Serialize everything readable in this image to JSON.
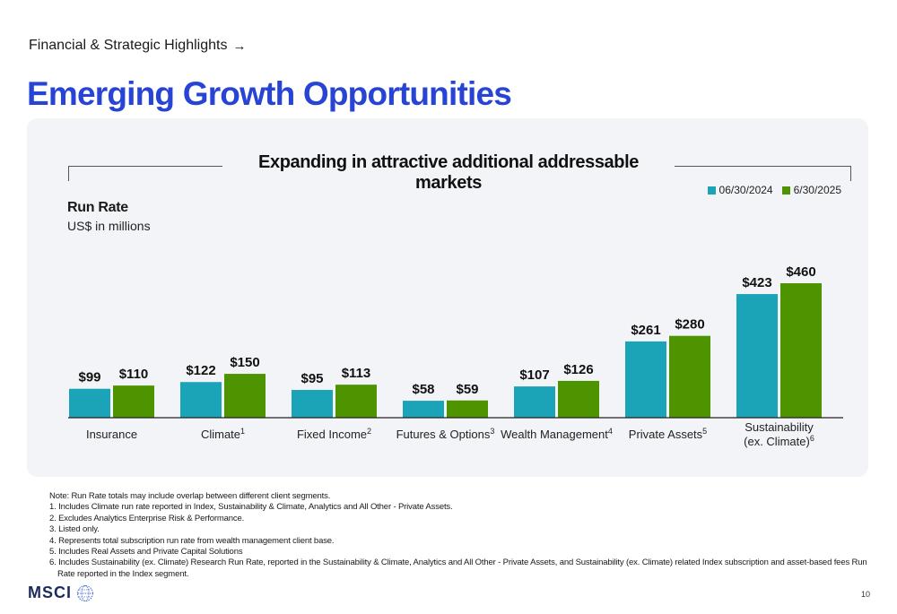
{
  "header": {
    "breadcrumb": "Financial & Strategic Highlights",
    "breadcrumb_arrow": "→",
    "title": "Emerging Growth Opportunities"
  },
  "colors": {
    "title_blue": "#2744d4",
    "teal": "#1ba3b8",
    "green": "#4d9400",
    "panel_bg": "#f3f4f8"
  },
  "chart_data": {
    "type": "bar",
    "title": "Expanding in attractive additional addressable markets",
    "ylabel": "Run Rate",
    "ysublabel": "US$ in millions",
    "legend_position": "top-right",
    "grid": false,
    "ylim": [
      0,
      460
    ],
    "categories": [
      {
        "name": "Insurance",
        "sup": ""
      },
      {
        "name": "Climate",
        "sup": "1"
      },
      {
        "name": "Fixed Income",
        "sup": "2"
      },
      {
        "name": "Futures & Options",
        "sup": "3"
      },
      {
        "name": "Wealth Management",
        "sup": "4"
      },
      {
        "name": "Private Assets",
        "sup": "5"
      },
      {
        "name": "Sustainability (ex. Climate)",
        "sup": "6"
      }
    ],
    "series": [
      {
        "name": "06/30/2024",
        "color": "#1ba3b8",
        "values": [
          99,
          122,
          95,
          58,
          107,
          261,
          423
        ],
        "labels": [
          "$99",
          "$122",
          "$95",
          "$58",
          "$107",
          "$261",
          "$423"
        ]
      },
      {
        "name": "6/30/2025",
        "color": "#4d9400",
        "values": [
          110,
          150,
          113,
          59,
          126,
          280,
          460
        ],
        "labels": [
          "$110",
          "$150",
          "$113",
          "$59",
          "$126",
          "$280",
          "$460"
        ]
      }
    ]
  },
  "notes": {
    "note": "Note: Run Rate totals may include overlap between different client segments.",
    "n1": "1. Includes Climate run rate reported in Index, Sustainability & Climate, Analytics and All Other - Private Assets.",
    "n2": "2. Excludes Analytics Enterprise Risk & Performance.",
    "n3": "3. Listed only.",
    "n4": "4. Represents total subscription run rate from wealth management client base.",
    "n5": "5. Includes Real Assets and Private Capital Solutions",
    "n6a": "6. Includes Sustainability (ex. Climate) Research Run Rate, reported in the Sustainability & Climate, Analytics and All Other - Private Assets, and Sustainability (ex. Climate) related Index subscription and asset-based fees Run",
    "n6b": "Rate reported in the Index segment."
  },
  "footer": {
    "logo": "MSCI",
    "page_number": "10"
  }
}
